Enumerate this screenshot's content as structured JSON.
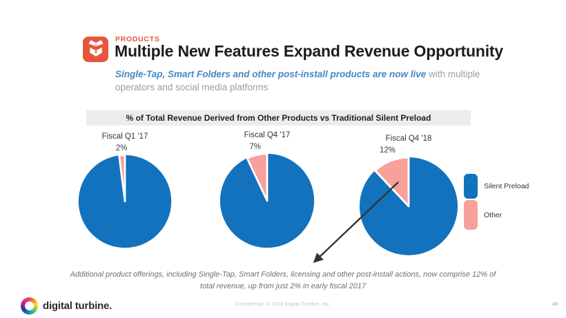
{
  "header": {
    "kicker": "PRODUCTS",
    "title": "Multiple New Features Expand Revenue Opportunity",
    "subtitle_highlight": "Single-Tap, Smart Folders and other post-install products are now live",
    "subtitle_rest": " with multiple operators and social media platforms",
    "accent_color": "#E4573D"
  },
  "banner": {
    "text": "% of Total Revenue Derived from Other Products vs Traditional Silent Preload"
  },
  "chart_data": {
    "type": "pie",
    "title": "% of Total Revenue Derived from Other Products vs Traditional Silent Preload",
    "colors": {
      "silent_preload": "#1272BD",
      "other": "#F8A09A"
    },
    "legend_position": "right",
    "legend": [
      {
        "label": "Silent Preload",
        "color": "#1272BD"
      },
      {
        "label": "Other",
        "color": "#F8A09A"
      }
    ],
    "pies": [
      {
        "label": "Fiscal Q1 '17",
        "value_label": "2%",
        "other_pct": 2,
        "silent_preload_pct": 98
      },
      {
        "label": "Fiscal Q4 '17",
        "value_label": "7%",
        "other_pct": 7,
        "silent_preload_pct": 93
      },
      {
        "label": "Fiscal Q4 '18",
        "value_label": "12%",
        "other_pct": 12,
        "silent_preload_pct": 88
      }
    ],
    "annotation_arrow": {
      "from_pie": "Fiscal Q4 '18 Other slice",
      "points_to": "caption text"
    }
  },
  "caption": "Additional product offerings, including Single-Tap, Smart Folders, licensing and other post-install actions, now comprise 12% of total revenue, up from just 2% in early fiscal 2017",
  "footer": {
    "logo_text": "digital turbine.",
    "confidential": "Confidential. © 2018 Digital Turbine, Inc.",
    "page_number": "49"
  }
}
